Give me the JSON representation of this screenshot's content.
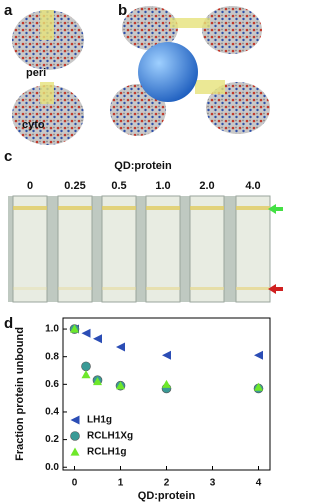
{
  "panel_labels": [
    "a",
    "b",
    "c",
    "d"
  ],
  "panel_a": {
    "labels": [
      "peri",
      "cyto"
    ]
  },
  "panel_c": {
    "title": "QD:protein",
    "tube_labels": [
      "0",
      "0.25",
      "0.5",
      "1.0",
      "2.0",
      "4.0"
    ]
  },
  "chart_data": {
    "type": "scatter",
    "x_label": "QD:protein",
    "y_label": "Fraction protein unbound",
    "x": [
      0,
      0.25,
      0.5,
      1,
      2,
      4
    ],
    "series": [
      {
        "name": "LH1g",
        "color": "#2b4db5",
        "marker": "triangle-left",
        "values": [
          1.0,
          0.97,
          0.93,
          0.87,
          0.81,
          0.81
        ]
      },
      {
        "name": "RCLH1Xg",
        "color": "#3a9a96",
        "marker": "circle",
        "values": [
          1.0,
          0.73,
          0.63,
          0.59,
          0.57,
          0.57
        ]
      },
      {
        "name": "RCLH1g",
        "color": "#6ee82a",
        "marker": "triangle-up",
        "values": [
          1.0,
          0.67,
          0.62,
          0.59,
          0.6,
          0.58
        ]
      }
    ],
    "xlim": [
      -0.25,
      4.25
    ],
    "ylim": [
      -0.02,
      1.08
    ],
    "xticks": [
      0,
      1,
      2,
      3,
      4
    ],
    "yticks": [
      {
        "value": 0,
        "label": "0.0"
      },
      0.2,
      0.4,
      0.6,
      0.8,
      {
        "value": 1,
        "label": "1.0"
      }
    ],
    "legend": "lower-left"
  }
}
